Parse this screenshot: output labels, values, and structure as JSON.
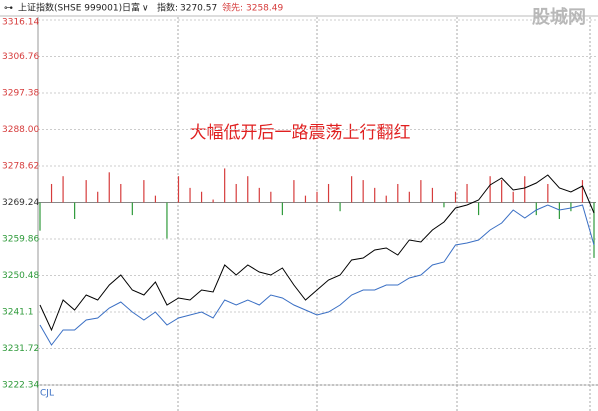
{
  "chart_data": {
    "type": "intraday",
    "header": {
      "symbol": "上证指数(SHSE 999001)",
      "period": "日富",
      "index_label": "指数:",
      "index_value": "3270.57",
      "lead_label": "领先:",
      "lead_value": "3258.49"
    },
    "watermark": "股城网",
    "annotation": "大幅低开后一路震荡上行翻红",
    "volume_label": "CJL",
    "ylim": [
      3222.34,
      3316.14
    ],
    "yticks": [
      3222.34,
      3231.72,
      3241.1,
      3250.48,
      3259.86,
      3269.24,
      3278.62,
      {
        "value": 3288,
        "label": "3288.00"
      },
      3297.38,
      3306.76,
      3316.14
    ],
    "baseline": 3269.24,
    "categories": [
      null,
      null,
      null,
      null,
      null,
      null,
      null,
      null,
      null,
      null,
      null,
      null,
      null,
      null,
      null,
      null,
      null,
      null,
      null,
      null,
      null,
      null,
      null,
      null,
      null,
      null,
      null,
      null,
      null,
      null,
      null,
      null,
      null,
      null,
      null,
      null,
      null,
      null,
      null,
      null,
      null,
      null,
      null,
      null,
      null,
      null,
      null,
      null,
      null
    ],
    "series": [
      {
        "color": "#000000",
        "values": [
          3242.89,
          3236.47,
          3244.18,
          3241.61,
          3245.46,
          3244.18,
          3248.04,
          3250.6,
          3246.75,
          3245.46,
          3248.81,
          3242.89,
          3244.69,
          3244.18,
          3246.75,
          3246.24,
          3253.17,
          3250.6,
          3253.17,
          3251.38,
          3250.6,
          3252.4,
          3248.04,
          3244.18,
          3246.75,
          3249.32,
          3250.6,
          3254.46,
          3254.97,
          3257.03,
          3257.54,
          3255.74,
          3259.6,
          3259.08,
          3262.17,
          3264.23,
          3267.82,
          3268.59,
          3269.88,
          3273.73,
          3275.53,
          3272.45,
          3272.96,
          3274.25,
          3276.3,
          3272.96,
          3271.94,
          3273.48,
          3266.54
        ]
      },
      {
        "color": "#3a6fc4",
        "values": [
          3237.75,
          3232.61,
          3236.47,
          3236.47,
          3239.04,
          3239.55,
          3242.12,
          3243.67,
          3241.09,
          3239.04,
          3241.09,
          3237.75,
          3239.55,
          3240.32,
          3241.09,
          3239.55,
          3244.18,
          3242.89,
          3244.18,
          3242.89,
          3245.46,
          3244.69,
          3242.89,
          3241.61,
          3240.32,
          3241.09,
          3242.89,
          3245.46,
          3246.75,
          3246.75,
          3248.04,
          3248.04,
          3249.83,
          3250.6,
          3253.17,
          3253.95,
          3258.31,
          3258.83,
          3259.6,
          3262.17,
          3263.97,
          3267.31,
          3265.25,
          3267.31,
          3268.59,
          3267.31,
          3267.82,
          3268.59,
          3258.31
        ]
      }
    ],
    "bars": {
      "up_color": "#d63c3c",
      "down_color": "#2e9a3a",
      "values": [
        3262,
        3274,
        3276,
        3265,
        3275,
        3272,
        3277,
        3274,
        3266,
        3275,
        3271,
        3260,
        3276,
        3273,
        3272,
        3270,
        3278,
        3274,
        3276,
        3273,
        3272,
        3266,
        3275,
        3271,
        3272,
        3274,
        3267,
        3276,
        3275,
        3273,
        3271,
        3274,
        3272,
        3275,
        3273,
        3268,
        3272,
        3274,
        3266,
        3276,
        3275,
        3272,
        3276,
        3266,
        3274,
        3265,
        3267,
        3275,
        3255
      ]
    },
    "grid": true
  }
}
